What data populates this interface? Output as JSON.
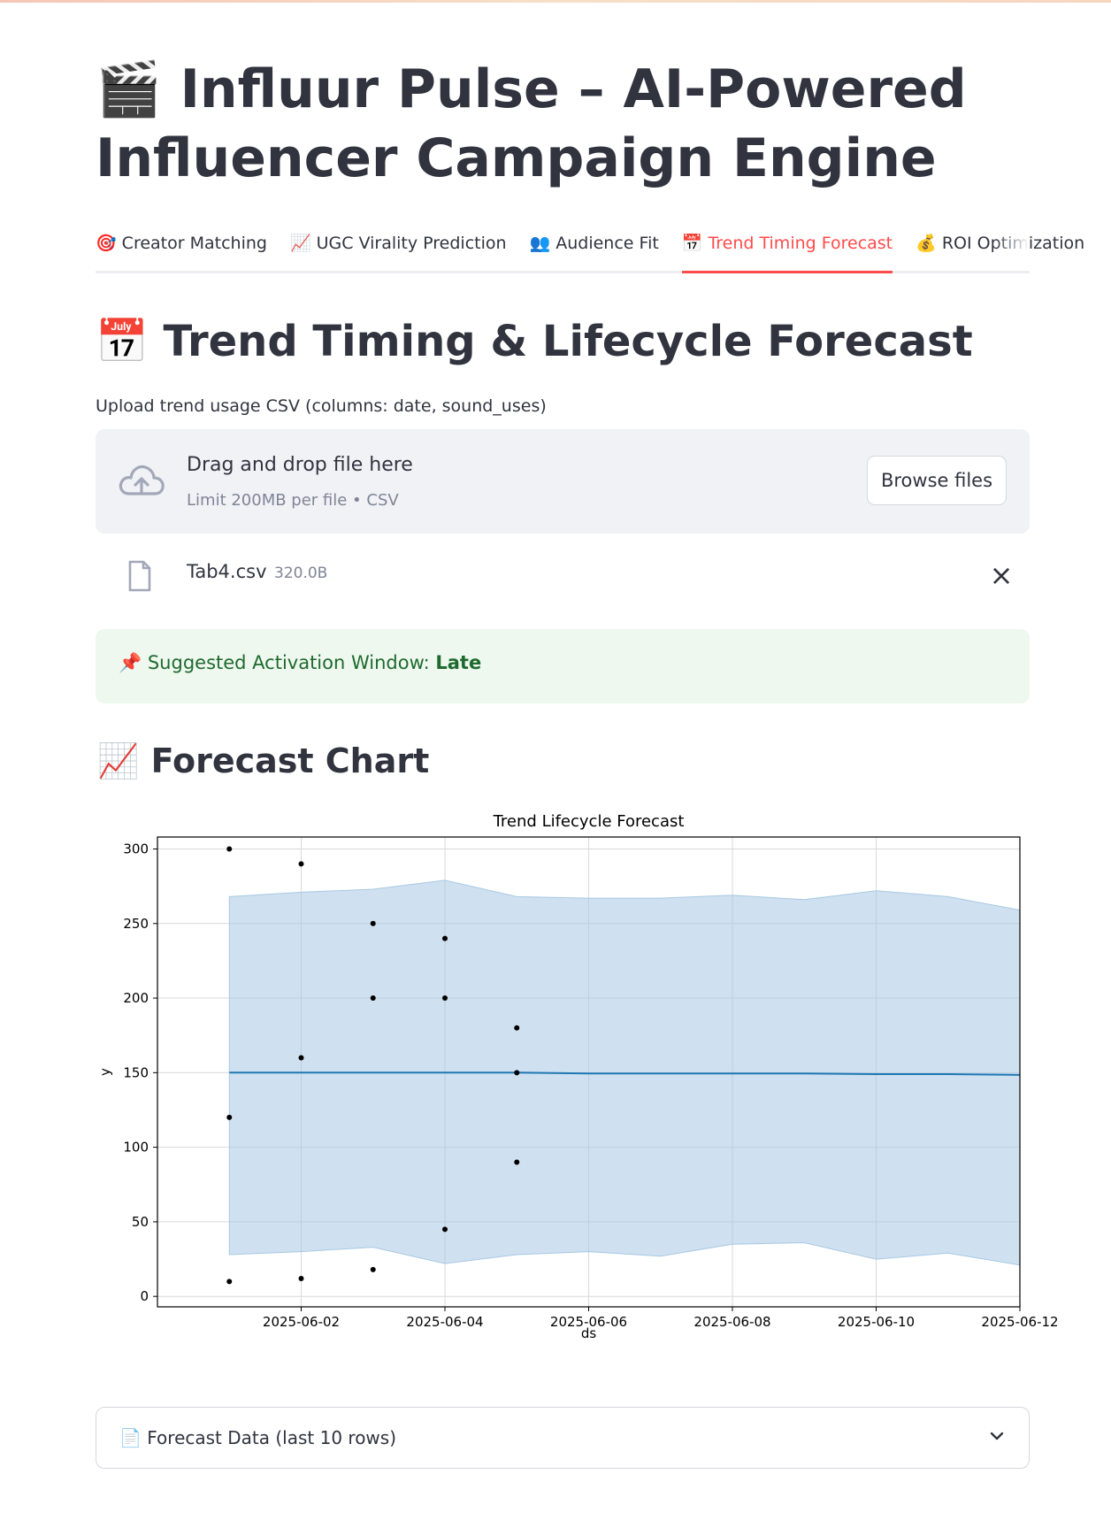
{
  "app": {
    "title_icon": "clapper-board-icon",
    "title_emoji": "🎬",
    "title": "Influur Pulse – AI-Powered Influencer Campaign Engine"
  },
  "tabs": [
    {
      "icon": "🎯",
      "label": "Creator Matching",
      "active": false
    },
    {
      "icon": "📈",
      "label": "UGC Virality Prediction",
      "active": false
    },
    {
      "icon": "👥",
      "label": "Audience Fit",
      "active": false
    },
    {
      "icon": "📅",
      "label": "Trend Timing Forecast",
      "active": true
    },
    {
      "icon": "💰",
      "label": "ROI Optimization",
      "active": false
    }
  ],
  "section": {
    "icon": "📅",
    "title": "Trend Timing & Lifecycle Forecast"
  },
  "uploader": {
    "label": "Upload trend usage CSV (columns: date, sound_uses)",
    "drop_text": "Drag and drop file here",
    "limit_text": "Limit 200MB per file • CSV",
    "browse_label": "Browse files"
  },
  "file": {
    "name": "Tab4.csv",
    "size": "320.0B"
  },
  "alert": {
    "icon": "📌",
    "prefix": "Suggested Activation Window: ",
    "value": "Late"
  },
  "chart_section": {
    "icon": "📈",
    "title": "Forecast Chart"
  },
  "chart_data": {
    "type": "line",
    "title": "Trend Lifecycle Forecast",
    "xlabel": "ds",
    "ylabel": "y",
    "xlim": [
      "2025-05-31",
      "2025-06-12"
    ],
    "ylim": [
      -7,
      308
    ],
    "x_ticks": [
      "2025-06-02",
      "2025-06-04",
      "2025-06-06",
      "2025-06-08",
      "2025-06-10",
      "2025-06-12"
    ],
    "y_ticks": [
      0,
      50,
      100,
      150,
      200,
      250,
      300
    ],
    "grid": true,
    "forecast": {
      "x": [
        "2025-06-01",
        "2025-06-02",
        "2025-06-03",
        "2025-06-04",
        "2025-06-05",
        "2025-06-06",
        "2025-06-07",
        "2025-06-08",
        "2025-06-09",
        "2025-06-10",
        "2025-06-11",
        "2025-06-12"
      ],
      "yhat": [
        150,
        150,
        150,
        150,
        150,
        149.5,
        149.5,
        149.5,
        149.5,
        149,
        149,
        148.5
      ],
      "upper": [
        268,
        271,
        273,
        279,
        268,
        267,
        267,
        269,
        266,
        272,
        268,
        259
      ],
      "lower": [
        28,
        30,
        33,
        22,
        28,
        30,
        27,
        35,
        36,
        25,
        29,
        21
      ],
      "line_color": "#1f77b4",
      "band_color": "#a8c8e4"
    },
    "observed": {
      "x": [
        "2025-06-01",
        "2025-06-01",
        "2025-06-01",
        "2025-06-02",
        "2025-06-02",
        "2025-06-02",
        "2025-06-03",
        "2025-06-03",
        "2025-06-03",
        "2025-06-04",
        "2025-06-04",
        "2025-06-04",
        "2025-06-05",
        "2025-06-05",
        "2025-06-05"
      ],
      "y": [
        300,
        120,
        10,
        290,
        160,
        12,
        250,
        200,
        18,
        240,
        200,
        45,
        180,
        150,
        90
      ],
      "color": "#000000"
    }
  },
  "expander": {
    "icon": "📄",
    "label": "Forecast Data (last 10 rows)",
    "chevron_icon": "chevron-down-icon"
  }
}
